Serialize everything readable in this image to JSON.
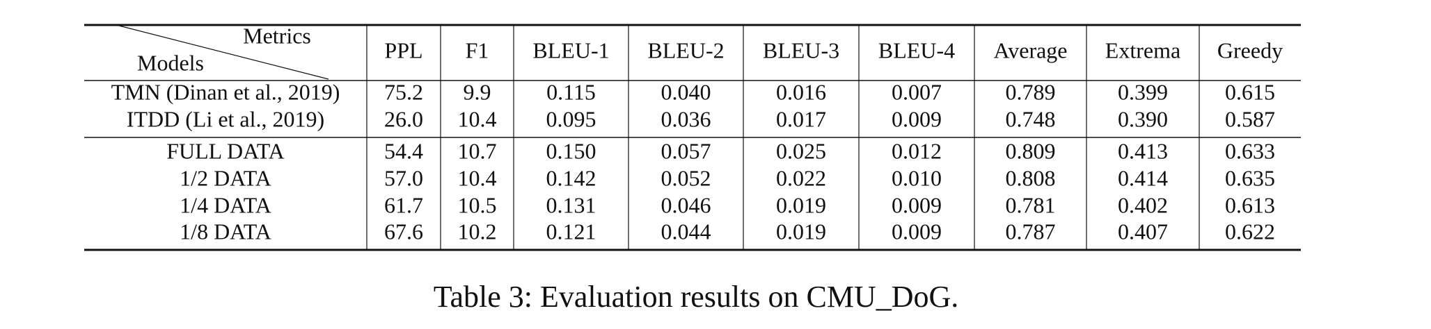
{
  "table": {
    "corner": {
      "top": "Metrics",
      "bottom": "Models"
    },
    "columns": [
      "PPL",
      "F1",
      "BLEU-1",
      "BLEU-2",
      "BLEU-3",
      "BLEU-4",
      "Average",
      "Extrema",
      "Greedy"
    ],
    "rows": [
      [
        "TMN (Dinan et al., 2019)",
        "75.2",
        "9.9",
        "0.115",
        "0.040",
        "0.016",
        "0.007",
        "0.789",
        "0.399",
        "0.615"
      ],
      [
        "ITDD (Li et al., 2019)",
        "26.0",
        "10.4",
        "0.095",
        "0.036",
        "0.017",
        "0.009",
        "0.748",
        "0.390",
        "0.587"
      ],
      [
        "FULL DATA",
        "54.4",
        "10.7",
        "0.150",
        "0.057",
        "0.025",
        "0.012",
        "0.809",
        "0.413",
        "0.633"
      ],
      [
        "1/2 DATA",
        "57.0",
        "10.4",
        "0.142",
        "0.052",
        "0.022",
        "0.010",
        "0.808",
        "0.414",
        "0.635"
      ],
      [
        "1/4 DATA",
        "61.7",
        "10.5",
        "0.131",
        "0.046",
        "0.019",
        "0.009",
        "0.781",
        "0.402",
        "0.613"
      ],
      [
        "1/8 DATA",
        "67.6",
        "10.2",
        "0.121",
        "0.044",
        "0.019",
        "0.009",
        "0.787",
        "0.407",
        "0.622"
      ]
    ]
  },
  "caption": "Table 3: Evaluation results on CMU_DoG."
}
